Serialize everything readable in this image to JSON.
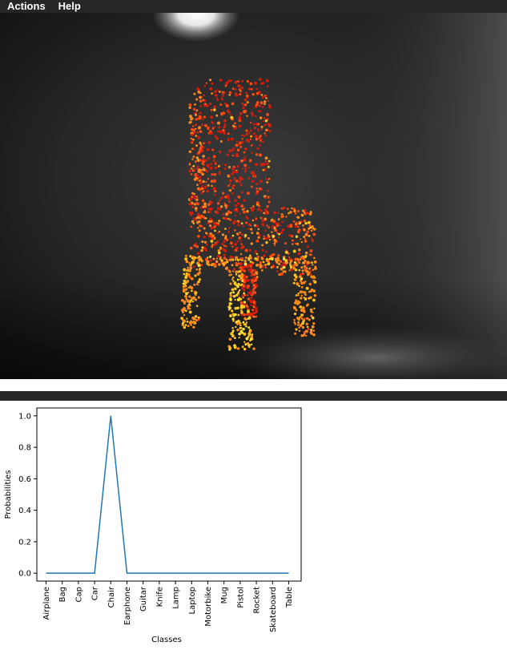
{
  "menu": {
    "items": [
      {
        "label": "Actions"
      },
      {
        "label": "Help"
      }
    ]
  },
  "viewer": {
    "subject": "chair point cloud",
    "palette": [
      "#d81c0c",
      "#ff4a10",
      "#ff8a1c",
      "#ffc51f",
      "#ffe23a"
    ]
  },
  "chart_data": {
    "type": "line",
    "categories": [
      "Airplane",
      "Bag",
      "Cap",
      "Car",
      "Chair",
      "Earphone",
      "Guitar",
      "Knife",
      "Lamp",
      "Laptop",
      "Motorbike",
      "Mug",
      "Pistol",
      "Rocket",
      "Skateboard",
      "Table"
    ],
    "series": [
      {
        "values": [
          0,
          0,
          0,
          0,
          1.0,
          0,
          0,
          0,
          0,
          0,
          0,
          0,
          0,
          0,
          0,
          0
        ],
        "color": "#1f77b4"
      }
    ],
    "xlabel": "Classes",
    "ylabel": "Probabilities",
    "ylim": [
      -0.05,
      1.05
    ],
    "yticks": [
      0.0,
      0.2,
      0.4,
      0.6,
      0.8,
      1.0
    ],
    "ytick_labels": [
      "0.0",
      "0.2",
      "0.4",
      "0.6",
      "0.8",
      "1.0"
    ],
    "grid": false,
    "legend": "none"
  }
}
